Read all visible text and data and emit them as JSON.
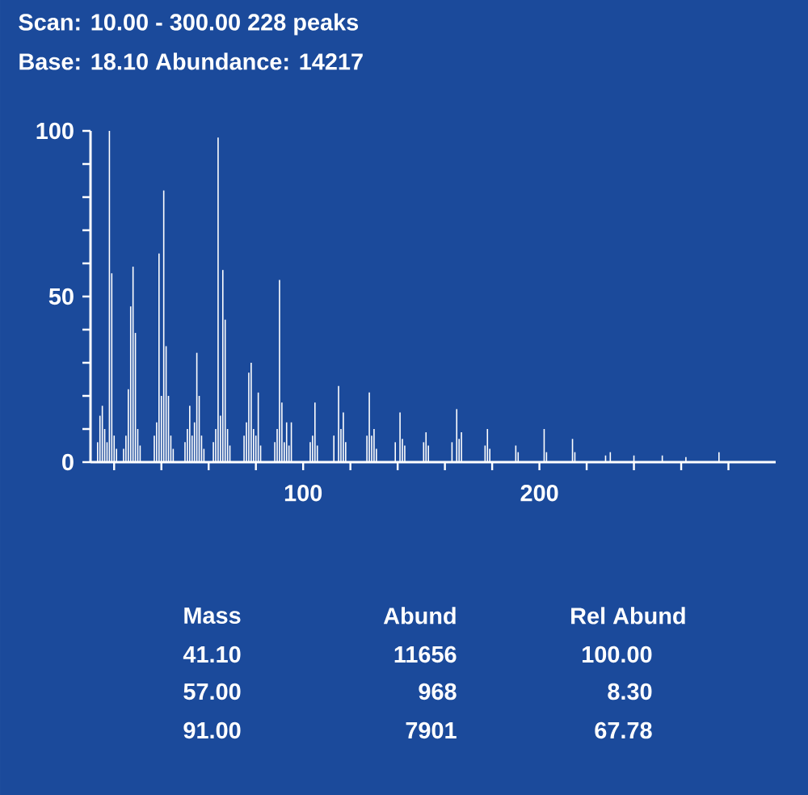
{
  "chart_data": {
    "type": "bar",
    "title": "Scan: 10.00 - 300.00   228 peaks",
    "subtitle": "Base:  18.10  Abundance:  14217",
    "color": "#ffffff",
    "x": [
      13,
      14,
      15,
      16,
      17,
      18,
      19,
      20,
      21,
      24,
      25,
      26,
      27,
      28,
      29,
      30,
      31,
      37,
      38,
      39,
      40,
      41,
      42,
      43,
      44,
      45,
      50,
      51,
      52,
      53,
      54,
      55,
      56,
      57,
      58,
      62,
      63,
      64,
      65,
      66,
      67,
      68,
      69,
      75,
      76,
      77,
      78,
      79,
      80,
      81,
      82,
      88,
      89,
      90,
      91,
      92,
      93,
      94,
      95,
      103,
      104,
      105,
      106,
      113,
      115,
      116,
      117,
      118,
      127,
      128,
      129,
      130,
      131,
      139,
      141,
      142,
      143,
      151,
      152,
      153,
      163,
      165,
      166,
      167,
      177,
      178,
      179,
      190,
      191,
      202,
      203,
      214,
      215,
      228,
      230,
      240,
      252,
      262,
      276
    ],
    "values": [
      6,
      14,
      17,
      10,
      6,
      100,
      57,
      8,
      4,
      4,
      8,
      22,
      47,
      59,
      39,
      10,
      5,
      8,
      12,
      63,
      20,
      82,
      35,
      20,
      8,
      4,
      6,
      10,
      17,
      8,
      12,
      33,
      20,
      8,
      4,
      6,
      10,
      98,
      14,
      58,
      43,
      10,
      5,
      8,
      12,
      27,
      30,
      10,
      8,
      21,
      5,
      6,
      10,
      55,
      18,
      6,
      12,
      5,
      12,
      6,
      8,
      18,
      5,
      8,
      23,
      10,
      15,
      6,
      8,
      21,
      8,
      10,
      4,
      6,
      15,
      7,
      5,
      6,
      9,
      5,
      6,
      16,
      7,
      9,
      5,
      10,
      4,
      5,
      3,
      10,
      3,
      7,
      3,
      2,
      3,
      2,
      2,
      1.5,
      3
    ],
    "xlim": [
      10,
      300
    ],
    "ylim": [
      0,
      100
    ],
    "xticks": [
      {
        "value": 20,
        "label": null
      },
      {
        "value": 40,
        "label": null
      },
      {
        "value": 60,
        "label": null
      },
      {
        "value": 80,
        "label": null
      },
      100,
      {
        "value": 120,
        "label": null
      },
      {
        "value": 140,
        "label": null
      },
      {
        "value": 160,
        "label": null
      },
      {
        "value": 180,
        "label": null
      },
      200,
      {
        "value": 220,
        "label": null
      },
      {
        "value": 240,
        "label": null
      },
      {
        "value": 260,
        "label": null
      },
      {
        "value": 280,
        "label": null
      }
    ],
    "yticks": [
      0,
      {
        "value": 10,
        "label": null
      },
      {
        "value": 20,
        "label": null
      },
      {
        "value": 30,
        "label": null
      },
      {
        "value": 40,
        "label": null
      },
      50,
      {
        "value": 60,
        "label": null
      },
      {
        "value": 70,
        "label": null
      },
      {
        "value": 80,
        "label": null
      },
      {
        "value": 90,
        "label": null
      },
      100
    ],
    "annotations": [
      "Mass",
      "Abund",
      "Rel Abund",
      "41.10",
      "11656",
      "100.00",
      "57.00",
      "968",
      "8.30",
      "91.00",
      "7901",
      "67.78"
    ]
  }
}
